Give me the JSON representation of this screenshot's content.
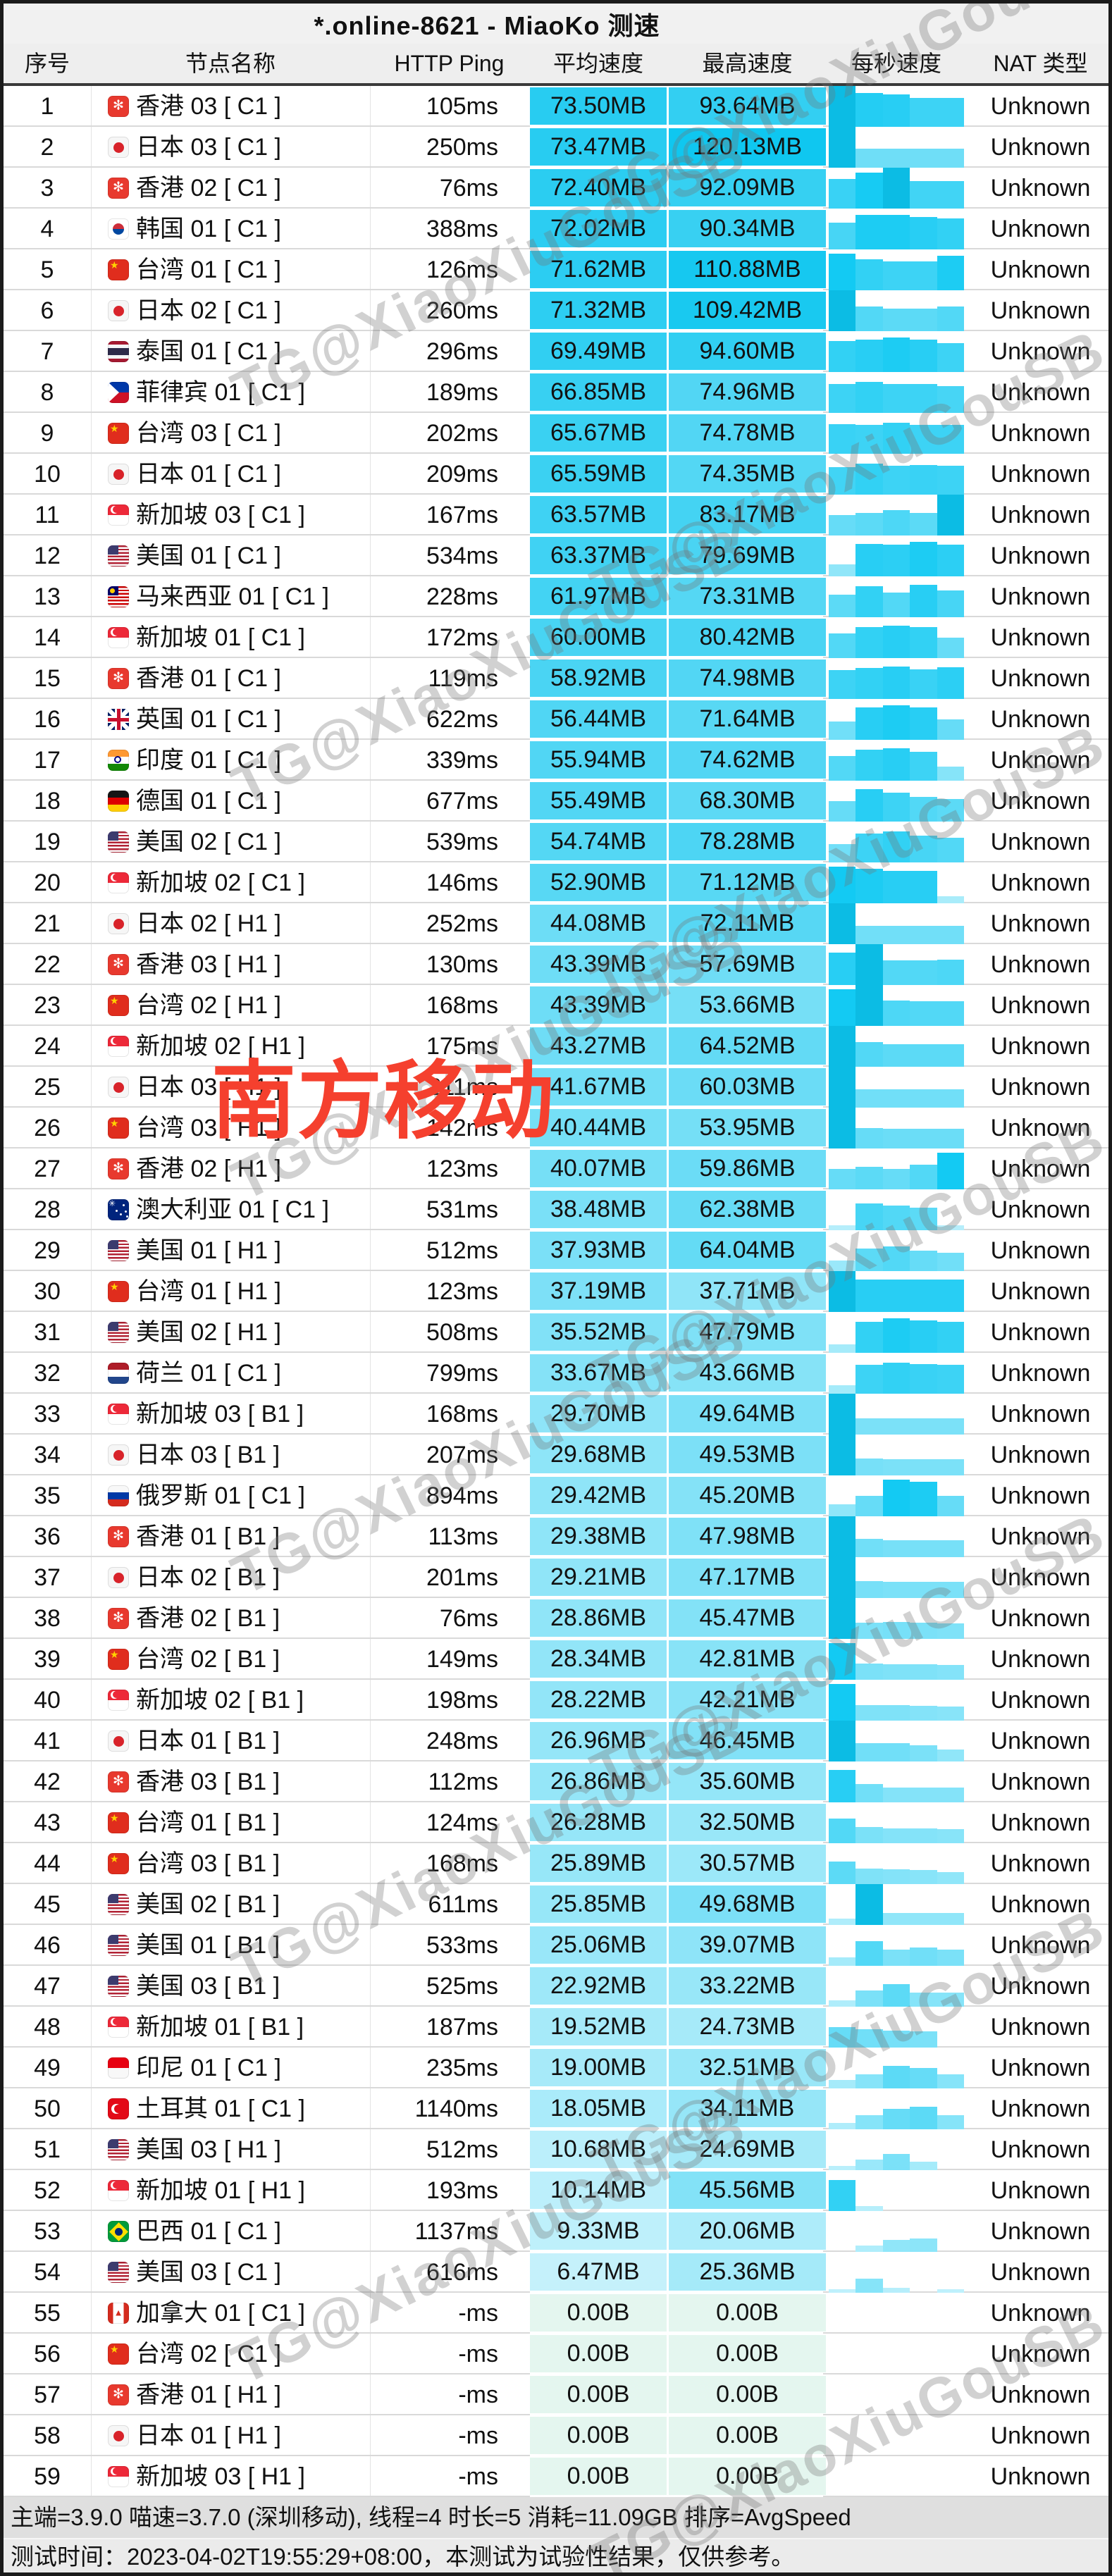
{
  "title": "*.online-8621 - MiaoKo 测速",
  "watermark": {
    "text": "TG@XiaoXiuGouSB"
  },
  "stamp": {
    "text": "南方移动",
    "color": "#f5402e"
  },
  "columns": {
    "index": "序号",
    "name": "节点名称",
    "ping": "HTTP Ping",
    "avg": "平均速度",
    "max": "最高速度",
    "per_second": "每秒速度",
    "nat": "NAT 类型"
  },
  "footer": {
    "line1": "主端=3.9.0 喵速=3.7.0 (深圳移动), 线程=4 时长=5 消耗=11.09GB 排序=AvgSpeed",
    "line2": "测试时间：2023-04-02T19:55:29+08:00，本测试为试验性结果，仅供参考。"
  },
  "colors": {
    "accent_cyan": "#00c3ea",
    "zero_cell": "#e4f6ef",
    "row_line": "#d9d9d9",
    "stamp_red": "#f5402e"
  },
  "rows": [
    {
      "index": 1,
      "flag": "hk",
      "name": "香港 03 [ C1 ]",
      "ping": "105ms",
      "avg": "73.50MB",
      "max": "93.64MB",
      "nat": "Unknown",
      "bars": [
        1,
        0.82,
        0.8,
        0.7,
        0.7
      ]
    },
    {
      "index": 2,
      "flag": "jp",
      "name": "日本 03 [ C1 ]",
      "ping": "250ms",
      "avg": "73.47MB",
      "max": "120.13MB",
      "nat": "Unknown",
      "bars": [
        1,
        0.46,
        0.46,
        0.46,
        0.46
      ]
    },
    {
      "index": 3,
      "flag": "hk",
      "name": "香港 02 [ C1 ]",
      "ping": "76ms",
      "avg": "72.40MB",
      "max": "92.09MB",
      "nat": "Unknown",
      "bars": [
        0.72,
        0.88,
        1,
        0.68,
        0.68
      ]
    },
    {
      "index": 4,
      "flag": "kr",
      "name": "韩国 01 [ C1 ]",
      "ping": "388ms",
      "avg": "72.02MB",
      "max": "90.34MB",
      "nat": "Unknown",
      "bars": [
        0.65,
        0.85,
        0.85,
        0.8,
        0.75
      ]
    },
    {
      "index": 5,
      "flag": "cn",
      "name": "台湾 01 [ C1 ]",
      "ping": "126ms",
      "avg": "71.62MB",
      "max": "110.88MB",
      "nat": "Unknown",
      "bars": [
        0.9,
        0.75,
        0.7,
        0.7,
        0.85
      ]
    },
    {
      "index": 6,
      "flag": "jp",
      "name": "日本 02 [ C1 ]",
      "ping": "260ms",
      "avg": "71.32MB",
      "max": "109.42MB",
      "nat": "Unknown",
      "bars": [
        1,
        0.6,
        0.55,
        0.55,
        0.6
      ]
    },
    {
      "index": 7,
      "flag": "th",
      "name": "泰国 01 [ C1 ]",
      "ping": "296ms",
      "avg": "69.49MB",
      "max": "94.60MB",
      "nat": "Unknown",
      "bars": [
        0.75,
        0.8,
        0.85,
        0.8,
        0.7
      ]
    },
    {
      "index": 8,
      "flag": "ph",
      "name": "菲律宾 01 [ C1 ]",
      "ping": "189ms",
      "avg": "66.85MB",
      "max": "74.96MB",
      "nat": "Unknown",
      "bars": [
        0.7,
        0.75,
        0.7,
        0.7,
        0.65
      ]
    },
    {
      "index": 9,
      "flag": "cn",
      "name": "台湾 03 [ C1 ]",
      "ping": "202ms",
      "avg": "65.67MB",
      "max": "74.78MB",
      "nat": "Unknown",
      "bars": [
        0.72,
        0.7,
        0.75,
        0.7,
        0.7
      ]
    },
    {
      "index": 10,
      "flag": "jp",
      "name": "日本 01 [ C1 ]",
      "ping": "209ms",
      "avg": "65.59MB",
      "max": "74.35MB",
      "nat": "Unknown",
      "bars": [
        0.68,
        0.75,
        0.7,
        0.72,
        0.7
      ]
    },
    {
      "index": 11,
      "flag": "sg",
      "name": "新加坡 03 [ C1 ]",
      "ping": "167ms",
      "avg": "63.57MB",
      "max": "83.17MB",
      "nat": "Unknown",
      "bars": [
        0.5,
        0.55,
        0.62,
        0.55,
        1
      ]
    },
    {
      "index": 12,
      "flag": "us",
      "name": "美国 01 [ C1 ]",
      "ping": "534ms",
      "avg": "63.37MB",
      "max": "79.69MB",
      "nat": "Unknown",
      "bars": [
        0.3,
        0.8,
        0.78,
        0.85,
        0.78
      ]
    },
    {
      "index": 13,
      "flag": "my",
      "name": "马来西亚 01 [ C1 ]",
      "ping": "228ms",
      "avg": "61.97MB",
      "max": "73.31MB",
      "nat": "Unknown",
      "bars": [
        0.55,
        0.75,
        0.6,
        0.8,
        0.65
      ]
    },
    {
      "index": 14,
      "flag": "sg",
      "name": "新加坡 01 [ C1 ]",
      "ping": "172ms",
      "avg": "60.00MB",
      "max": "80.42MB",
      "nat": "Unknown",
      "bars": [
        0.6,
        0.75,
        0.8,
        0.75,
        0.5
      ]
    },
    {
      "index": 15,
      "flag": "hk",
      "name": "香港 01 [ C1 ]",
      "ping": "119ms",
      "avg": "58.92MB",
      "max": "74.98MB",
      "nat": "Unknown",
      "bars": [
        0.7,
        0.75,
        0.8,
        0.72,
        0.78
      ]
    },
    {
      "index": 16,
      "flag": "gb",
      "name": "英国 01 [ C1 ]",
      "ping": "622ms",
      "avg": "56.44MB",
      "max": "71.64MB",
      "nat": "Unknown",
      "bars": [
        0.45,
        0.8,
        0.85,
        0.8,
        0.5
      ]
    },
    {
      "index": 17,
      "flag": "in",
      "name": "印度 01 [ C1 ]",
      "ping": "339ms",
      "avg": "55.94MB",
      "max": "74.62MB",
      "nat": "Unknown",
      "bars": [
        0.6,
        0.75,
        0.8,
        0.7,
        0.35
      ]
    },
    {
      "index": 18,
      "flag": "de",
      "name": "德国 01 [ C1 ]",
      "ping": "677ms",
      "avg": "55.49MB",
      "max": "68.30MB",
      "nat": "Unknown",
      "bars": [
        0.5,
        0.8,
        0.7,
        0.6,
        0.55
      ]
    },
    {
      "index": 19,
      "flag": "us",
      "name": "美国 02 [ C1 ]",
      "ping": "539ms",
      "avg": "54.74MB",
      "max": "78.28MB",
      "nat": "Unknown",
      "bars": [
        0.45,
        0.7,
        0.75,
        0.65,
        0.6
      ]
    },
    {
      "index": 20,
      "flag": "sg",
      "name": "新加坡 02 [ C1 ]",
      "ping": "146ms",
      "avg": "52.90MB",
      "max": "71.12MB",
      "nat": "Unknown",
      "bars": [
        0.9,
        0.85,
        0.8,
        0.8,
        0.18
      ]
    },
    {
      "index": 21,
      "flag": "jp",
      "name": "日本 02 [ H1 ]",
      "ping": "252ms",
      "avg": "44.08MB",
      "max": "72.11MB",
      "nat": "Unknown",
      "bars": [
        1,
        0.45,
        0.45,
        0.45,
        0.45
      ]
    },
    {
      "index": 22,
      "flag": "hk",
      "name": "香港 03 [ H1 ]",
      "ping": "130ms",
      "avg": "43.39MB",
      "max": "57.69MB",
      "nat": "Unknown",
      "bars": [
        0.8,
        1,
        0.6,
        0.6,
        0.62
      ]
    },
    {
      "index": 23,
      "flag": "cn",
      "name": "台湾 02 [ H1 ]",
      "ping": "168ms",
      "avg": "43.39MB",
      "max": "53.66MB",
      "nat": "Unknown",
      "bars": [
        0.9,
        1,
        0.62,
        0.6,
        0.6
      ]
    },
    {
      "index": 24,
      "flag": "sg",
      "name": "新加坡 02 [ H1 ]",
      "ping": "175ms",
      "avg": "43.27MB",
      "max": "64.52MB",
      "nat": "Unknown",
      "bars": [
        1,
        0.6,
        0.55,
        0.55,
        0.55
      ]
    },
    {
      "index": 25,
      "flag": "jp",
      "name": "日本 03 [ H1 ]",
      "ping": "211ms",
      "avg": "41.67MB",
      "max": "60.03MB",
      "nat": "Unknown",
      "bars": [
        1,
        0.45,
        0.45,
        0.45,
        0.45
      ]
    },
    {
      "index": 26,
      "flag": "cn",
      "name": "台湾 03 [ H1 ]",
      "ping": "142ms",
      "avg": "40.44MB",
      "max": "53.95MB",
      "nat": "Unknown",
      "bars": [
        1,
        0.5,
        0.48,
        0.48,
        0.48
      ]
    },
    {
      "index": 27,
      "flag": "hk",
      "name": "香港 02 [ H1 ]",
      "ping": "123ms",
      "avg": "40.07MB",
      "max": "59.86MB",
      "nat": "Unknown",
      "bars": [
        0.5,
        0.55,
        0.5,
        0.6,
        0.9
      ]
    },
    {
      "index": 28,
      "flag": "au",
      "name": "澳大利亚 01 [ C1 ]",
      "ping": "531ms",
      "avg": "38.48MB",
      "max": "62.38MB",
      "nat": "Unknown",
      "bars": [
        0.12,
        0.65,
        0.6,
        0.55,
        0.12
      ]
    },
    {
      "index": 29,
      "flag": "us",
      "name": "美国 01 [ H1 ]",
      "ping": "512ms",
      "avg": "37.93MB",
      "max": "64.04MB",
      "nat": "Unknown",
      "bars": [
        0.25,
        0.55,
        0.6,
        0.5,
        0.45
      ]
    },
    {
      "index": 30,
      "flag": "cn",
      "name": "台湾 01 [ H1 ]",
      "ping": "123ms",
      "avg": "37.19MB",
      "max": "37.71MB",
      "nat": "Unknown",
      "bars": [
        1,
        0.8,
        0.8,
        0.8,
        0.8
      ]
    },
    {
      "index": 31,
      "flag": "us",
      "name": "美国 02 [ H1 ]",
      "ping": "508ms",
      "avg": "35.52MB",
      "max": "47.79MB",
      "nat": "Unknown",
      "bars": [
        0.2,
        0.75,
        0.85,
        0.8,
        0.75
      ]
    },
    {
      "index": 32,
      "flag": "nl",
      "name": "荷兰 01 [ C1 ]",
      "ping": "799ms",
      "avg": "33.67MB",
      "max": "43.66MB",
      "nat": "Unknown",
      "bars": [
        0.2,
        0.7,
        0.75,
        0.72,
        0.7
      ]
    },
    {
      "index": 33,
      "flag": "sg",
      "name": "新加坡 03 [ B1 ]",
      "ping": "168ms",
      "avg": "29.70MB",
      "max": "49.64MB",
      "nat": "Unknown",
      "bars": [
        1,
        0.4,
        0.4,
        0.4,
        0.4
      ]
    },
    {
      "index": 34,
      "flag": "jp",
      "name": "日本 03 [ B1 ]",
      "ping": "207ms",
      "avg": "29.68MB",
      "max": "49.53MB",
      "nat": "Unknown",
      "bars": [
        1,
        0.42,
        0.4,
        0.4,
        0.4
      ]
    },
    {
      "index": 35,
      "flag": "ru",
      "name": "俄罗斯 01 [ C1 ]",
      "ping": "894ms",
      "avg": "29.42MB",
      "max": "45.20MB",
      "nat": "Unknown",
      "bars": [
        0.3,
        0.5,
        0.9,
        0.85,
        0.5
      ]
    },
    {
      "index": 36,
      "flag": "hk",
      "name": "香港 01 [ B1 ]",
      "ping": "113ms",
      "avg": "29.38MB",
      "max": "47.98MB",
      "nat": "Unknown",
      "bars": [
        1,
        0.45,
        0.42,
        0.42,
        0.42
      ]
    },
    {
      "index": 37,
      "flag": "jp",
      "name": "日本 02 [ B1 ]",
      "ping": "201ms",
      "avg": "29.21MB",
      "max": "47.17MB",
      "nat": "Unknown",
      "bars": [
        1,
        0.42,
        0.4,
        0.4,
        0.4
      ]
    },
    {
      "index": 38,
      "flag": "hk",
      "name": "香港 02 [ B1 ]",
      "ping": "76ms",
      "avg": "28.86MB",
      "max": "45.47MB",
      "nat": "Unknown",
      "bars": [
        1,
        0.4,
        0.42,
        0.4,
        0.38
      ]
    },
    {
      "index": 39,
      "flag": "cn",
      "name": "台湾 02 [ B1 ]",
      "ping": "149ms",
      "avg": "28.34MB",
      "max": "42.81MB",
      "nat": "Unknown",
      "bars": [
        0.9,
        0.4,
        0.38,
        0.38,
        0.36
      ]
    },
    {
      "index": 40,
      "flag": "sg",
      "name": "新加坡 02 [ B1 ]",
      "ping": "198ms",
      "avg": "28.22MB",
      "max": "42.21MB",
      "nat": "Unknown",
      "bars": [
        0.9,
        0.38,
        0.38,
        0.36,
        0.34
      ]
    },
    {
      "index": 41,
      "flag": "jp",
      "name": "日本 01 [ B1 ]",
      "ping": "248ms",
      "avg": "26.96MB",
      "max": "46.45MB",
      "nat": "Unknown",
      "bars": [
        1,
        0.45,
        0.45,
        0.4,
        0.3
      ]
    },
    {
      "index": 42,
      "flag": "hk",
      "name": "香港 03 [ B1 ]",
      "ping": "112ms",
      "avg": "26.86MB",
      "max": "35.60MB",
      "nat": "Unknown",
      "bars": [
        0.8,
        0.45,
        0.36,
        0.36,
        0.36
      ]
    },
    {
      "index": 43,
      "flag": "cn",
      "name": "台湾 01 [ B1 ]",
      "ping": "124ms",
      "avg": "26.28MB",
      "max": "32.50MB",
      "nat": "Unknown",
      "bars": [
        0.6,
        0.4,
        0.36,
        0.36,
        0.34
      ]
    },
    {
      "index": 44,
      "flag": "cn",
      "name": "台湾 03 [ B1 ]",
      "ping": "168ms",
      "avg": "25.89MB",
      "max": "30.57MB",
      "nat": "Unknown",
      "bars": [
        0.55,
        0.38,
        0.36,
        0.34,
        0.3
      ]
    },
    {
      "index": 45,
      "flag": "us",
      "name": "美国 02 [ B1 ]",
      "ping": "611ms",
      "avg": "25.85MB",
      "max": "49.68MB",
      "nat": "Unknown",
      "bars": [
        0.15,
        1,
        0.3,
        0.3,
        0.3
      ]
    },
    {
      "index": 46,
      "flag": "us",
      "name": "美国 01 [ B1 ]",
      "ping": "533ms",
      "avg": "25.06MB",
      "max": "39.07MB",
      "nat": "Unknown",
      "bars": [
        0.2,
        0.6,
        0.4,
        0.45,
        0.4
      ]
    },
    {
      "index": 47,
      "flag": "us",
      "name": "美国 03 [ B1 ]",
      "ping": "525ms",
      "avg": "22.92MB",
      "max": "33.22MB",
      "nat": "Unknown",
      "bars": [
        0.15,
        0.4,
        0.55,
        0.35,
        0.35
      ]
    },
    {
      "index": 48,
      "flag": "sg",
      "name": "新加坡 01 [ B1 ]",
      "ping": "187ms",
      "avg": "19.52MB",
      "max": "24.73MB",
      "nat": "Unknown",
      "bars": [
        0.5,
        0.45,
        0.42,
        0.4,
        0
      ]
    },
    {
      "index": 49,
      "flag": "id",
      "name": "印尼 01 [ C1 ]",
      "ping": "235ms",
      "avg": "19.00MB",
      "max": "32.51MB",
      "nat": "Unknown",
      "bars": [
        0.2,
        0.35,
        0.55,
        0.5,
        0.35
      ]
    },
    {
      "index": 50,
      "flag": "tr",
      "name": "土耳其 01 [ C1 ]",
      "ping": "1140ms",
      "avg": "18.05MB",
      "max": "34.11MB",
      "nat": "Unknown",
      "bars": [
        0.15,
        0.35,
        0.5,
        0.55,
        0.35
      ]
    },
    {
      "index": 51,
      "flag": "us",
      "name": "美国 03 [ H1 ]",
      "ping": "512ms",
      "avg": "10.68MB",
      "max": "24.69MB",
      "nat": "Unknown",
      "bars": [
        0.1,
        0.25,
        0.4,
        0.2,
        0
      ]
    },
    {
      "index": 52,
      "flag": "sg",
      "name": "新加坡 01 [ H1 ]",
      "ping": "193ms",
      "avg": "10.14MB",
      "max": "45.56MB",
      "nat": "Unknown",
      "bars": [
        0.75,
        0.12,
        0,
        0,
        0
      ]
    },
    {
      "index": 53,
      "flag": "br",
      "name": "巴西 01 [ C1 ]",
      "ping": "1137ms",
      "avg": "9.33MB",
      "max": "20.06MB",
      "nat": "Unknown",
      "bars": [
        0,
        0.15,
        0.3,
        0.32,
        0
      ]
    },
    {
      "index": 54,
      "flag": "us",
      "name": "美国 03 [ C1 ]",
      "ping": "616ms",
      "avg": "6.47MB",
      "max": "25.36MB",
      "nat": "Unknown",
      "bars": [
        0.08,
        0.35,
        0.12,
        0,
        0.08
      ]
    },
    {
      "index": 55,
      "flag": "ca",
      "name": "加拿大 01 [ C1 ]",
      "ping": "-ms",
      "avg": "0.00B",
      "max": "0.00B",
      "nat": "Unknown",
      "bars": [
        0,
        0,
        0,
        0,
        0
      ]
    },
    {
      "index": 56,
      "flag": "cn",
      "name": "台湾 02 [ C1 ]",
      "ping": "-ms",
      "avg": "0.00B",
      "max": "0.00B",
      "nat": "Unknown",
      "bars": [
        0,
        0,
        0,
        0,
        0
      ]
    },
    {
      "index": 57,
      "flag": "hk",
      "name": "香港 01 [ H1 ]",
      "ping": "-ms",
      "avg": "0.00B",
      "max": "0.00B",
      "nat": "Unknown",
      "bars": [
        0,
        0,
        0,
        0,
        0
      ]
    },
    {
      "index": 58,
      "flag": "jp",
      "name": "日本 01 [ H1 ]",
      "ping": "-ms",
      "avg": "0.00B",
      "max": "0.00B",
      "nat": "Unknown",
      "bars": [
        0,
        0,
        0,
        0,
        0
      ]
    },
    {
      "index": 59,
      "flag": "sg",
      "name": "新加坡 03 [ H1 ]",
      "ping": "-ms",
      "avg": "0.00B",
      "max": "0.00B",
      "nat": "Unknown",
      "bars": [
        0,
        0,
        0,
        0,
        0
      ]
    }
  ]
}
